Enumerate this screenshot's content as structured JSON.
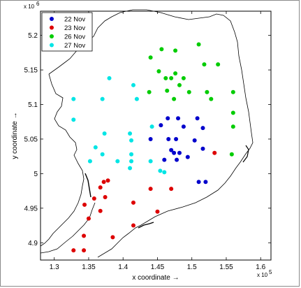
{
  "chart_data": {
    "type": "scatter",
    "title": "",
    "xlabel": "x coordinate →",
    "ylabel": "y coordinate →",
    "x_exponent_label": "x 10",
    "x_exponent_power": "5",
    "y_exponent_label": "x 10",
    "y_exponent_power": "6",
    "xlim": [
      1.28,
      1.615
    ],
    "ylim": [
      4.875,
      5.235
    ],
    "xticks": [
      1.3,
      1.35,
      1.4,
      1.45,
      1.5,
      1.55,
      1.6
    ],
    "xtick_labels": [
      "1.3",
      "1.35",
      "1.4",
      "1.45",
      "1.5",
      "1.55",
      "1.6"
    ],
    "yticks": [
      4.9,
      4.95,
      5.0,
      5.05,
      5.1,
      5.15,
      5.2
    ],
    "ytick_labels": [
      "4.9",
      "4.95",
      "5",
      "5.05",
      "5.1",
      "5.15",
      "5.2"
    ],
    "grid": false,
    "legend_position": "top-left",
    "series": [
      {
        "name": "22 Nov",
        "color": "#0000cc",
        "points": [
          [
            1.44,
            5.05
          ],
          [
            1.455,
            5.07
          ],
          [
            1.465,
            5.08
          ],
          [
            1.48,
            5.08
          ],
          [
            1.488,
            5.068
          ],
          [
            1.508,
            5.08
          ],
          [
            1.516,
            5.066
          ],
          [
            1.466,
            5.05
          ],
          [
            1.477,
            5.05
          ],
          [
            1.47,
            5.034
          ],
          [
            1.474,
            5.03
          ],
          [
            1.482,
            5.03
          ],
          [
            1.494,
            5.024
          ],
          [
            1.46,
            5.02
          ],
          [
            1.478,
            5.02
          ],
          [
            1.504,
            5.048
          ],
          [
            1.516,
            5.036
          ],
          [
            1.51,
            4.988
          ],
          [
            1.52,
            4.988
          ]
        ]
      },
      {
        "name": "23 Nov",
        "color": "#dd0000",
        "points": [
          [
            1.372,
            4.988
          ],
          [
            1.378,
            4.99
          ],
          [
            1.367,
            4.98
          ],
          [
            1.358,
            4.964
          ],
          [
            1.374,
            4.966
          ],
          [
            1.344,
            4.955
          ],
          [
            1.367,
            4.946
          ],
          [
            1.35,
            4.935
          ],
          [
            1.343,
            4.91
          ],
          [
            1.385,
            4.908
          ],
          [
            1.328,
            4.889
          ],
          [
            1.343,
            4.889
          ],
          [
            1.415,
            4.958
          ],
          [
            1.44,
            4.978
          ],
          [
            1.47,
            4.978
          ],
          [
            1.45,
            4.945
          ],
          [
            1.415,
            4.925
          ],
          [
            1.533,
            5.03
          ]
        ]
      },
      {
        "name": "26 Nov",
        "color": "#00cc00",
        "points": [
          [
            1.51,
            5.187
          ],
          [
            1.456,
            5.18
          ],
          [
            1.476,
            5.178
          ],
          [
            1.44,
            5.168
          ],
          [
            1.518,
            5.158
          ],
          [
            1.538,
            5.158
          ],
          [
            1.452,
            5.148
          ],
          [
            1.476,
            5.145
          ],
          [
            1.462,
            5.138
          ],
          [
            1.47,
            5.138
          ],
          [
            1.488,
            5.138
          ],
          [
            1.482,
            5.128
          ],
          [
            1.464,
            5.12
          ],
          [
            1.496,
            5.118
          ],
          [
            1.438,
            5.118
          ],
          [
            1.522,
            5.118
          ],
          [
            1.56,
            5.118
          ],
          [
            1.474,
            5.108
          ],
          [
            1.528,
            5.108
          ],
          [
            1.56,
            5.088
          ],
          [
            1.56,
            5.068
          ],
          [
            1.558,
            5.028
          ]
        ]
      },
      {
        "name": "27 Nov",
        "color": "#00e5e5",
        "points": [
          [
            1.38,
            5.138
          ],
          [
            1.415,
            5.128
          ],
          [
            1.328,
            5.108
          ],
          [
            1.37,
            5.108
          ],
          [
            1.42,
            5.108
          ],
          [
            1.328,
            5.078
          ],
          [
            1.373,
            5.058
          ],
          [
            1.41,
            5.058
          ],
          [
            1.442,
            5.068
          ],
          [
            1.412,
            5.048
          ],
          [
            1.36,
            5.038
          ],
          [
            1.37,
            5.028
          ],
          [
            1.412,
            5.028
          ],
          [
            1.352,
            5.018
          ],
          [
            1.392,
            5.018
          ],
          [
            1.44,
            5.018
          ],
          [
            1.412,
            5.018
          ],
          [
            1.41,
            5.008
          ],
          [
            1.454,
            5.004
          ],
          [
            1.46,
            5.002
          ]
        ]
      }
    ]
  }
}
